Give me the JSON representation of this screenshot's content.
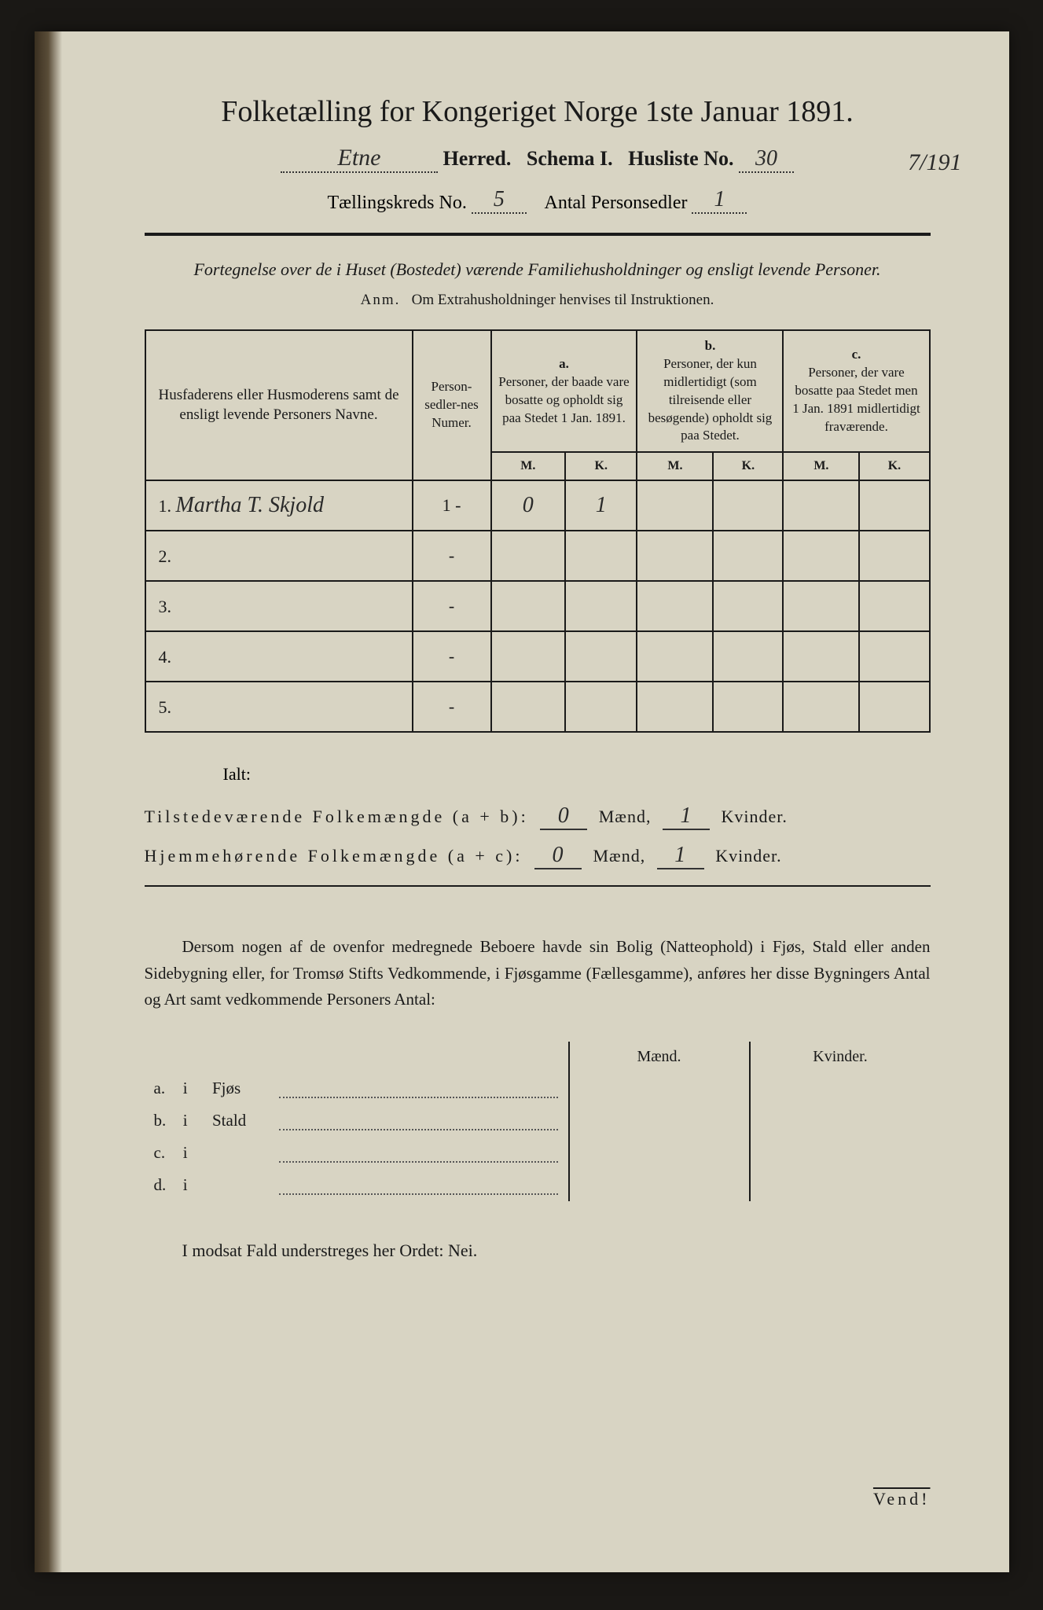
{
  "document": {
    "title": "Folketælling for Kongeriget Norge 1ste Januar 1891.",
    "herred_value": "Etne",
    "herred_label": "Herred.",
    "schema_label": "Schema I.",
    "husliste_label": "Husliste No.",
    "husliste_no": "30",
    "margin_note": "7/191",
    "kreds_label": "Tællingskreds No.",
    "kreds_no": "5",
    "antal_label": "Antal Personsedler",
    "antal_value": "1",
    "description": "Fortegnelse over de i Huset (Bostedet) værende Familiehusholdninger og ensligt levende Personer.",
    "annotation_prefix": "Anm.",
    "annotation_text": "Om Extrahusholdninger henvises til Instruktionen."
  },
  "table": {
    "headers": {
      "names": "Husfaderens eller Husmoderens samt de ensligt levende Personers Navne.",
      "numer": "Person-sedler-nes Numer.",
      "col_a_label": "a.",
      "col_a_text": "Personer, der baade vare bosatte og opholdt sig paa Stedet 1 Jan. 1891.",
      "col_b_label": "b.",
      "col_b_text": "Personer, der kun midlertidigt (som tilreisende eller besøgende) opholdt sig paa Stedet.",
      "col_c_label": "c.",
      "col_c_text": "Personer, der vare bosatte paa Stedet men 1 Jan. 1891 midlertidigt fraværende.",
      "m": "M.",
      "k": "K."
    },
    "rows": [
      {
        "num": "1.",
        "name": "Martha T. Skjold",
        "sedler": "1 -",
        "a_m": "0",
        "a_k": "1",
        "b_m": "",
        "b_k": "",
        "c_m": "",
        "c_k": ""
      },
      {
        "num": "2.",
        "name": "",
        "sedler": "-",
        "a_m": "",
        "a_k": "",
        "b_m": "",
        "b_k": "",
        "c_m": "",
        "c_k": ""
      },
      {
        "num": "3.",
        "name": "",
        "sedler": "-",
        "a_m": "",
        "a_k": "",
        "b_m": "",
        "b_k": "",
        "c_m": "",
        "c_k": ""
      },
      {
        "num": "4.",
        "name": "",
        "sedler": "-",
        "a_m": "",
        "a_k": "",
        "b_m": "",
        "b_k": "",
        "c_m": "",
        "c_k": ""
      },
      {
        "num": "5.",
        "name": "",
        "sedler": "-",
        "a_m": "",
        "a_k": "",
        "b_m": "",
        "b_k": "",
        "c_m": "",
        "c_k": ""
      }
    ]
  },
  "summary": {
    "ialt": "Ialt:",
    "line1_label": "Tilstedeværende Folkemængde (a + b):",
    "line2_label": "Hjemmehørende Folkemængde (a + c):",
    "maend_label": "Mænd,",
    "kvinder_label": "Kvinder.",
    "line1_m": "0",
    "line1_k": "1",
    "line2_m": "0",
    "line2_k": "1"
  },
  "building": {
    "paragraph": "Dersom nogen af de ovenfor medregnede Beboere havde sin Bolig (Natteophold) i Fjøs, Stald eller anden Sidebygning eller, for Tromsø Stifts Vedkommende, i Fjøsgamme (Fællesgamme), anføres her disse Bygningers Antal og Art samt vedkommende Personers Antal:",
    "maend": "Mænd.",
    "kvinder": "Kvinder.",
    "rows": [
      {
        "letter": "a.",
        "i": "i",
        "label": "Fjøs"
      },
      {
        "letter": "b.",
        "i": "i",
        "label": "Stald"
      },
      {
        "letter": "c.",
        "i": "i",
        "label": ""
      },
      {
        "letter": "d.",
        "i": "i",
        "label": ""
      }
    ]
  },
  "footer": {
    "final": "I modsat Fald understreges her Ordet: Nei.",
    "vend": "Vend!"
  },
  "colors": {
    "paper": "#d8d4c3",
    "ink": "#1a1a1a",
    "handwriting": "#2a2a2a",
    "background": "#1a1815"
  }
}
